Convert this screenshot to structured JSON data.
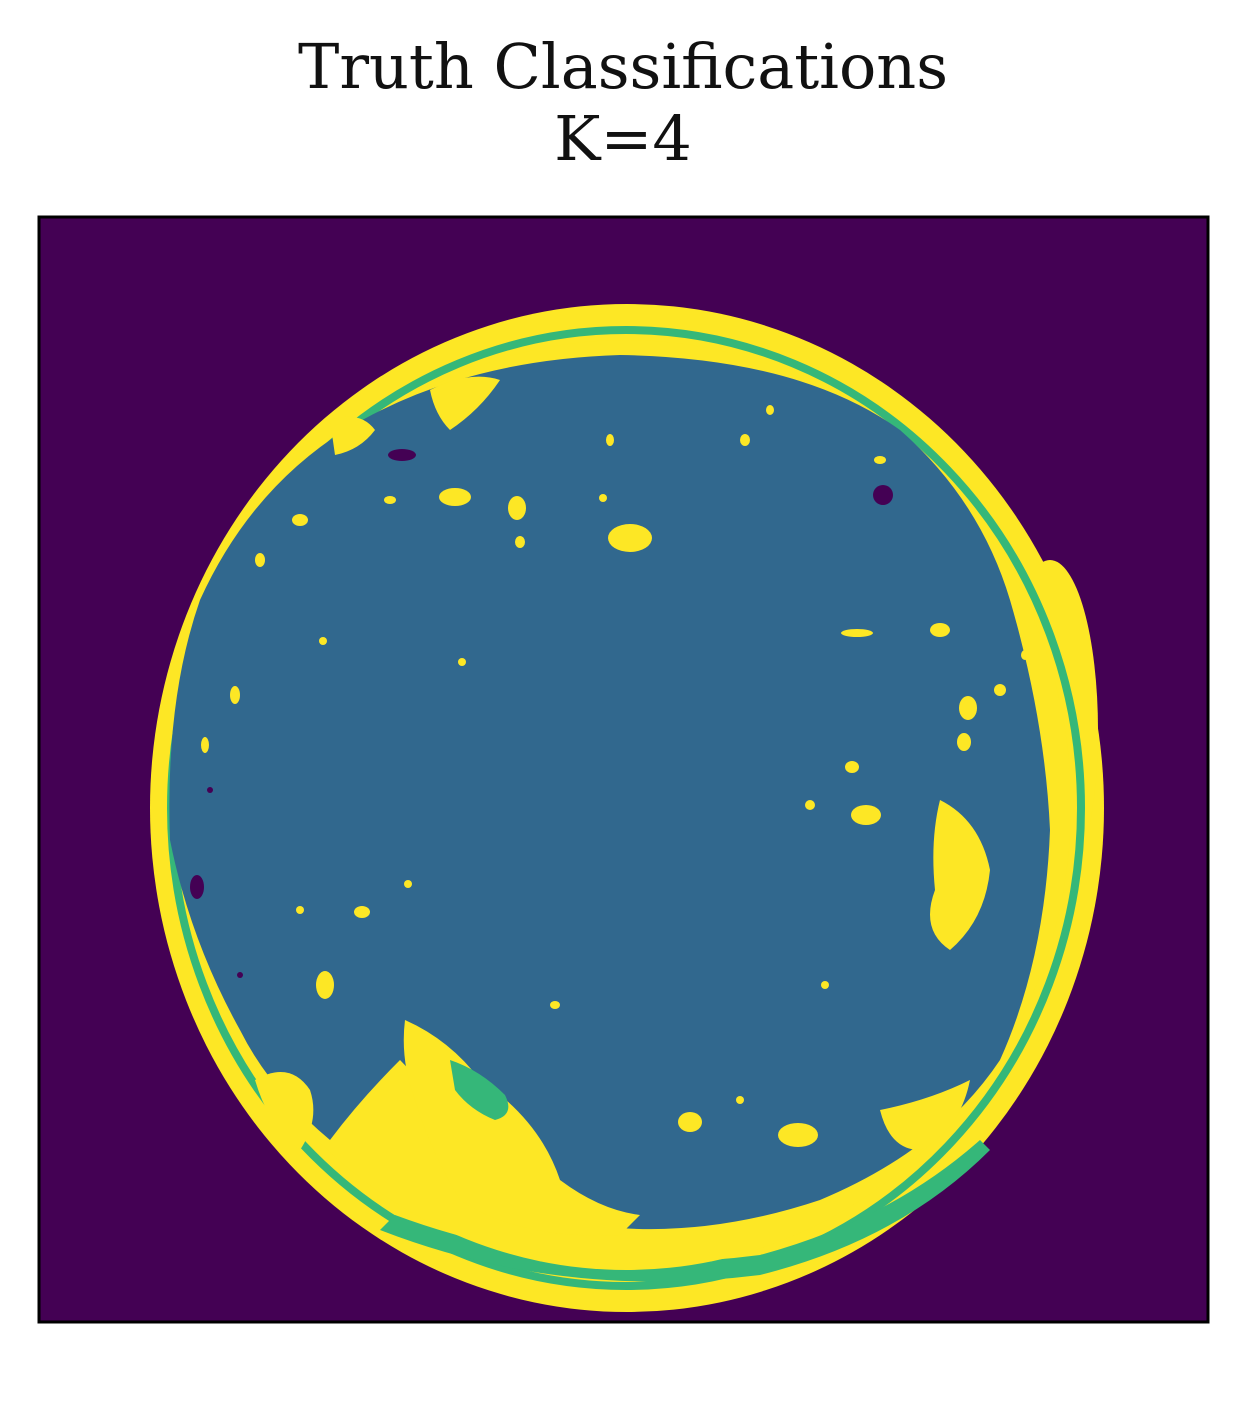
{
  "chart_data": {
    "type": "heatmap",
    "title": "Truth Classifications",
    "subtitle": "K=4",
    "xlabel": "",
    "ylabel": "",
    "ticks_visible": false,
    "grid": false,
    "legend": "none",
    "classes": [
      {
        "label": "0",
        "color": "#440154"
      },
      {
        "label": "1",
        "color": "#31688e"
      },
      {
        "label": "2",
        "color": "#35b779"
      },
      {
        "label": "3",
        "color": "#fde725"
      }
    ],
    "layout_description": "background class 0; circular disk of class 1 with a class 3 rim, a thin class 2 ring inside the rim, thicker class 2 band at bottom rim, scattered class 3 speckles and patches inside the disk, a few class 0 speckles inside"
  }
}
